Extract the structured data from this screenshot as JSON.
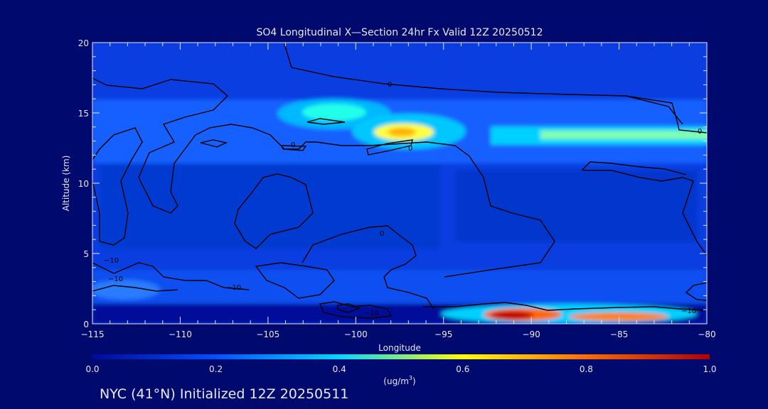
{
  "chart_data": {
    "type": "heatmap",
    "title": "SO4 Longitudinal X—Section 24hr  Fx Valid 12Z 20250512",
    "xlabel": "Longitude",
    "ylabel": "Altitude (km)",
    "xlim": [
      -115,
      -80
    ],
    "ylim": [
      0,
      20
    ],
    "x_ticks": [
      -115,
      -110,
      -105,
      -100,
      -95,
      -90,
      -85,
      -80
    ],
    "x_tick_labels": [
      "−115",
      "−110",
      "−105",
      "−100",
      "−95",
      "−90",
      "−85",
      "−80"
    ],
    "y_ticks": [
      0,
      5,
      10,
      15,
      20
    ],
    "colorbar": {
      "min": 0.0,
      "max": 1.0,
      "ticks": [
        0.0,
        0.2,
        0.4,
        0.6,
        0.8,
        1.0
      ],
      "tick_labels": [
        "0.0",
        "0.2",
        "0.4",
        "0.6",
        "0.8",
        "1.0"
      ],
      "units_prefix": "(ug/m",
      "units_sup": "3",
      "units_suffix": ")",
      "colors": [
        "#000a9a",
        "#0050ff",
        "#00d8ff",
        "#ffff00",
        "#ff6a00",
        "#b00000"
      ]
    },
    "background_level": 0.1,
    "features": [
      {
        "name": "upper layer",
        "lon": [
          -115,
          -80
        ],
        "alt": [
          12,
          16
        ],
        "value": 0.35
      },
      {
        "name": "upper maximum",
        "lon": -97,
        "alt": 13.5,
        "value": 0.6
      },
      {
        "name": "secondary maximum",
        "lon": -101,
        "alt": 14.8,
        "value": 0.45
      },
      {
        "name": "east band",
        "lon": [
          -88,
          -80
        ],
        "alt": 13.5,
        "value": 0.5
      },
      {
        "name": "surface maximum",
        "lon": -91,
        "alt": 0.6,
        "value": 0.95
      },
      {
        "name": "surface east",
        "lon": -85,
        "alt": 0.5,
        "value": 0.85
      },
      {
        "name": "low west",
        "lon": -114,
        "alt": 2,
        "value": 0.3
      }
    ],
    "contour_labels": [
      "0",
      "0",
      "0",
      "0",
      "0",
      "−0",
      "−10",
      "−10",
      "−10",
      "−10",
      "−10"
    ]
  },
  "footer": {
    "station": "NYC (41°N) Initialized 12Z 20250511"
  }
}
